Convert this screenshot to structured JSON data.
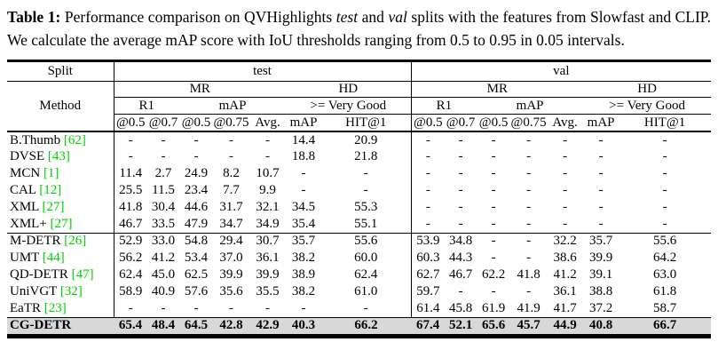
{
  "caption": {
    "label": "Table 1:",
    "t1": " Performance comparison on QVHighlights ",
    "test_word": "test",
    "t2": " and ",
    "val_word": "val",
    "t3": " splits with the features from Slowfast and CLIP. We calculate the average mAP score with IoU thresholds ranging from 0.5 to 0.95 in 0.05 intervals."
  },
  "colors": {
    "citation_green": "#00d000",
    "highlight_row_bg": "#d8d8d8"
  },
  "table": {
    "split_label": "Split",
    "method_label": "Method",
    "splits": [
      "test",
      "val"
    ],
    "groups": [
      "MR",
      "HD"
    ],
    "metrics": [
      "R1",
      "mAP",
      ">= Very Good"
    ],
    "thresholds": [
      "@0.5",
      "@0.7",
      "@0.5",
      "@0.75",
      "Avg.",
      "mAP",
      "HIT@1"
    ],
    "rows": [
      {
        "method": "B.Thumb",
        "cite": "[62]",
        "test": [
          "-",
          "-",
          "-",
          "-",
          "-",
          "14.4",
          "20.9"
        ],
        "val": [
          "-",
          "-",
          "-",
          "-",
          "-",
          "-",
          "-"
        ]
      },
      {
        "method": "DVSE",
        "cite": "[43]",
        "test": [
          "-",
          "-",
          "-",
          "-",
          "-",
          "18.8",
          "21.8"
        ],
        "val": [
          "-",
          "-",
          "-",
          "-",
          "-",
          "-",
          "-"
        ]
      },
      {
        "method": "MCN",
        "cite": "[1]",
        "test": [
          "11.4",
          "2.7",
          "24.9",
          "8.2",
          "10.7",
          "-",
          "-"
        ],
        "val": [
          "-",
          "-",
          "-",
          "-",
          "-",
          "-",
          "-"
        ]
      },
      {
        "method": "CAL",
        "cite": "[12]",
        "test": [
          "25.5",
          "11.5",
          "23.4",
          "7.7",
          "9.9",
          "-",
          "-"
        ],
        "val": [
          "-",
          "-",
          "-",
          "-",
          "-",
          "-",
          "-"
        ]
      },
      {
        "method": "XML",
        "cite": "[27]",
        "test": [
          "41.8",
          "30.4",
          "44.6",
          "31.7",
          "32.1",
          "34.5",
          "55.3"
        ],
        "val": [
          "-",
          "-",
          "-",
          "-",
          "-",
          "-",
          "-"
        ]
      },
      {
        "method": "XML+",
        "cite": "[27]",
        "test": [
          "46.7",
          "33.5",
          "47.9",
          "34.7",
          "34.9",
          "35.4",
          "55.1"
        ],
        "val": [
          "-",
          "-",
          "-",
          "-",
          "-",
          "-",
          "-"
        ],
        "rule_below": true
      },
      {
        "method": "M-DETR",
        "cite": "[26]",
        "test": [
          "52.9",
          "33.0",
          "54.8",
          "29.4",
          "30.7",
          "35.7",
          "55.6"
        ],
        "val": [
          "53.9",
          "34.8",
          "-",
          "-",
          "32.2",
          "35.7",
          "55.6"
        ]
      },
      {
        "method": "UMT",
        "cite": "[44]",
        "test": [
          "56.2",
          "41.2",
          "53.4",
          "37.0",
          "36.1",
          "38.2",
          "60.0"
        ],
        "val": [
          "60.3",
          "44.3",
          "-",
          "-",
          "38.6",
          "39.9",
          "64.2"
        ]
      },
      {
        "method": "QD-DETR",
        "cite": "[47]",
        "test": [
          "62.4",
          "45.0",
          "62.5",
          "39.9",
          "39.9",
          "38.9",
          "62.4"
        ],
        "val": [
          "62.7",
          "46.7",
          "62.2",
          "41.8",
          "41.2",
          "39.1",
          "63.0"
        ]
      },
      {
        "method": "UniVGT",
        "cite": "[32]",
        "test": [
          "58.9",
          "40.9",
          "57.6",
          "35.6",
          "35.5",
          "38.2",
          "61.0"
        ],
        "val": [
          "59.7",
          "-",
          "-",
          "-",
          "36.1",
          "38.8",
          "61.8"
        ]
      },
      {
        "method": "EaTR",
        "cite": "[23]",
        "test": [
          "-",
          "-",
          "-",
          "-",
          "-",
          "-",
          "-"
        ],
        "val": [
          "61.4",
          "45.8",
          "61.9",
          "41.9",
          "41.7",
          "37.2",
          "58.7"
        ],
        "rule_below": true
      },
      {
        "method": "CG-DETR",
        "cite": "",
        "test": [
          "65.4",
          "48.4",
          "64.5",
          "42.8",
          "42.9",
          "40.3",
          "66.2"
        ],
        "val": [
          "67.4",
          "52.1",
          "65.6",
          "45.7",
          "44.9",
          "40.8",
          "66.7"
        ],
        "highlight": true
      }
    ]
  }
}
